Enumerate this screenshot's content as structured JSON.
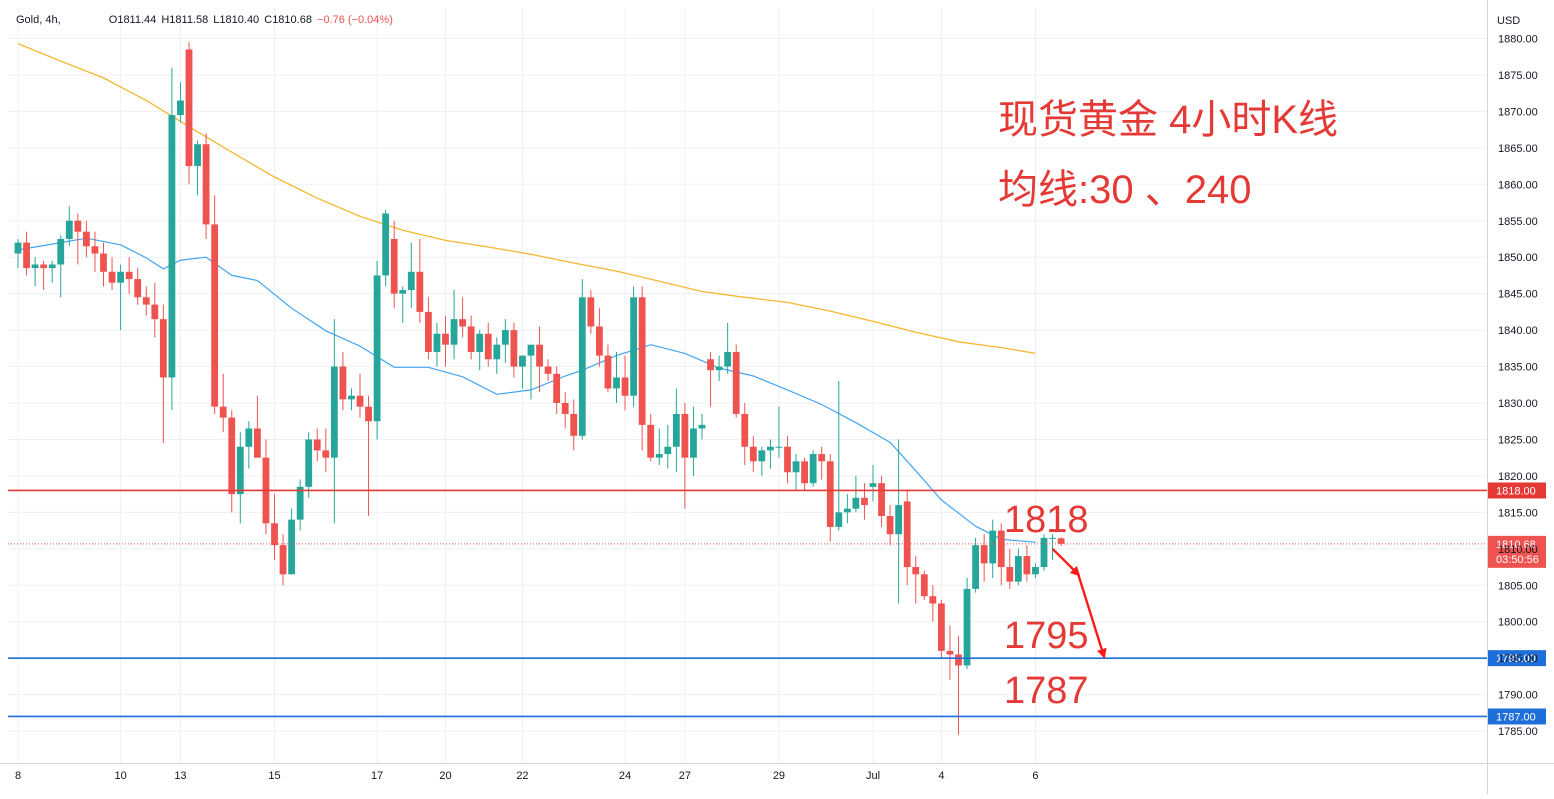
{
  "header": {
    "symbol": "Gold, 4h,",
    "open": "O1811.44",
    "high": "H1811.58",
    "low": "L1810.40",
    "close": "C1810.68",
    "change": "−0.76 (−0.04%)"
  },
  "colors": {
    "up": "#26a69a",
    "down": "#ef5350",
    "ma30": "#42a5f5",
    "ma240": "#f7b731",
    "resistance": "#e53935",
    "support": "#1e6fd9",
    "annotation": "#e53935",
    "grid": "#eef0f4"
  },
  "annotation": {
    "title": "现货黄金 4小时K线",
    "subtitle": "均线:30 、240",
    "label_1818": "1818",
    "label_1795": "1795",
    "label_1787": "1787"
  },
  "chart_data": {
    "type": "candlestick",
    "currency": "USD",
    "ylim": [
      1783,
      1883
    ],
    "y_ticks": [
      1785,
      1790,
      1795,
      1800,
      1805,
      1810,
      1815,
      1820,
      1825,
      1830,
      1835,
      1840,
      1845,
      1850,
      1855,
      1860,
      1865,
      1870,
      1875,
      1880
    ],
    "x_tick_labels": [
      "8",
      "10",
      "13",
      "15",
      "17",
      "20",
      "22",
      "24",
      "27",
      "29",
      "Jul",
      "4",
      "6"
    ],
    "x_tick_index": [
      0,
      12,
      19,
      30,
      42,
      50,
      59,
      71,
      78,
      89,
      100,
      108,
      119
    ],
    "candles": [
      [
        1850.5,
        1852.5,
        1848.5,
        1852.0
      ],
      [
        1852.0,
        1853.5,
        1847.5,
        1848.5
      ],
      [
        1848.5,
        1850.0,
        1846.0,
        1849.0
      ],
      [
        1849.0,
        1849.5,
        1845.5,
        1848.5
      ],
      [
        1848.5,
        1849.5,
        1846.5,
        1849.0
      ],
      [
        1849.0,
        1853.0,
        1844.5,
        1852.5
      ],
      [
        1852.5,
        1857.0,
        1851.5,
        1855.0
      ],
      [
        1855.0,
        1856.0,
        1849.0,
        1853.5
      ],
      [
        1853.5,
        1855.0,
        1850.0,
        1851.5
      ],
      [
        1851.5,
        1853.5,
        1848.0,
        1850.5
      ],
      [
        1850.5,
        1852.0,
        1846.0,
        1848.0
      ],
      [
        1848.0,
        1850.0,
        1845.5,
        1846.5
      ],
      [
        1846.5,
        1849.0,
        1840.0,
        1848.0
      ],
      [
        1848.0,
        1850.0,
        1845.0,
        1847.0
      ],
      [
        1847.0,
        1848.5,
        1843.5,
        1844.5
      ],
      [
        1844.5,
        1846.0,
        1842.0,
        1843.5
      ],
      [
        1843.5,
        1846.5,
        1839.0,
        1841.5
      ],
      [
        1841.5,
        1843.5,
        1824.5,
        1833.5
      ],
      [
        1833.5,
        1876.0,
        1829.0,
        1869.5
      ],
      [
        1869.5,
        1874.0,
        1868.5,
        1871.5
      ],
      [
        1878.5,
        1879.5,
        1860.0,
        1862.5
      ],
      [
        1862.5,
        1866.0,
        1858.5,
        1865.5
      ],
      [
        1865.5,
        1867.0,
        1852.5,
        1854.5
      ],
      [
        1854.5,
        1858.5,
        1828.5,
        1829.5
      ],
      [
        1829.5,
        1834.0,
        1826.0,
        1828.0
      ],
      [
        1828.0,
        1829.0,
        1815.0,
        1817.5
      ],
      [
        1817.5,
        1826.0,
        1813.5,
        1824.0
      ],
      [
        1824.0,
        1827.5,
        1821.0,
        1826.5
      ],
      [
        1826.5,
        1831.0,
        1822.5,
        1822.5
      ],
      [
        1822.5,
        1825.0,
        1812.0,
        1813.5
      ],
      [
        1813.5,
        1817.5,
        1808.5,
        1810.5
      ],
      [
        1810.5,
        1812.0,
        1805.0,
        1806.5
      ],
      [
        1806.5,
        1815.5,
        1806.5,
        1814.0
      ],
      [
        1814.0,
        1819.5,
        1812.5,
        1818.5
      ],
      [
        1818.5,
        1826.0,
        1817.0,
        1825.0
      ],
      [
        1825.0,
        1826.5,
        1822.0,
        1823.5
      ],
      [
        1823.5,
        1826.5,
        1820.5,
        1822.5
      ],
      [
        1822.5,
        1841.5,
        1813.5,
        1835.0
      ],
      [
        1835.0,
        1837.0,
        1829.0,
        1830.5
      ],
      [
        1830.5,
        1832.0,
        1829.0,
        1831.0
      ],
      [
        1831.0,
        1834.0,
        1828.0,
        1829.5
      ],
      [
        1829.5,
        1831.0,
        1814.5,
        1827.5
      ],
      [
        1827.5,
        1849.5,
        1825.0,
        1847.5
      ],
      [
        1847.5,
        1856.5,
        1846.0,
        1856.0
      ],
      [
        1852.5,
        1855.0,
        1843.0,
        1845.0
      ],
      [
        1845.0,
        1846.0,
        1841.0,
        1845.5
      ],
      [
        1845.5,
        1852.0,
        1843.0,
        1848.0
      ],
      [
        1848.0,
        1852.5,
        1841.0,
        1842.5
      ],
      [
        1842.5,
        1844.5,
        1836.0,
        1837.0
      ],
      [
        1837.0,
        1841.0,
        1835.0,
        1839.5
      ],
      [
        1839.5,
        1842.0,
        1835.0,
        1838.0
      ],
      [
        1838.0,
        1845.5,
        1836.0,
        1841.5
      ],
      [
        1841.5,
        1844.5,
        1839.0,
        1840.5
      ],
      [
        1840.5,
        1842.0,
        1836.0,
        1837.0
      ],
      [
        1837.0,
        1840.0,
        1834.5,
        1839.5
      ],
      [
        1839.5,
        1841.0,
        1835.0,
        1836.0
      ],
      [
        1836.0,
        1839.0,
        1834.0,
        1838.0
      ],
      [
        1838.0,
        1841.5,
        1835.5,
        1840.0
      ],
      [
        1840.0,
        1841.0,
        1833.5,
        1835.0
      ],
      [
        1835.0,
        1836.0,
        1832.0,
        1836.5
      ],
      [
        1836.5,
        1837.5,
        1830.5,
        1838.0
      ],
      [
        1838.0,
        1840.5,
        1831.5,
        1835.0
      ],
      [
        1835.0,
        1836.0,
        1833.0,
        1834.0
      ],
      [
        1834.0,
        1835.0,
        1828.5,
        1830.0
      ],
      [
        1830.0,
        1831.5,
        1826.5,
        1828.5
      ],
      [
        1828.5,
        1830.5,
        1823.5,
        1825.5
      ],
      [
        1825.5,
        1847.0,
        1825.0,
        1844.5
      ],
      [
        1844.5,
        1845.5,
        1839.5,
        1840.5
      ],
      [
        1840.5,
        1843.0,
        1835.0,
        1836.5
      ],
      [
        1836.5,
        1838.0,
        1831.5,
        1832.0
      ],
      [
        1832.0,
        1837.0,
        1830.0,
        1833.5
      ],
      [
        1833.5,
        1836.5,
        1829.0,
        1831.0
      ],
      [
        1831.0,
        1846.0,
        1829.5,
        1844.5
      ],
      [
        1844.5,
        1846.0,
        1823.5,
        1827.0
      ],
      [
        1827.0,
        1828.5,
        1822.0,
        1822.5
      ],
      [
        1822.5,
        1826.5,
        1821.5,
        1823.0
      ],
      [
        1823.0,
        1827.0,
        1821.0,
        1824.0
      ],
      [
        1824.0,
        1832.0,
        1820.5,
        1828.5
      ],
      [
        1828.5,
        1830.0,
        1815.5,
        1822.5
      ],
      [
        1822.5,
        1829.5,
        1820.0,
        1826.5
      ],
      [
        1826.5,
        1828.5,
        1825.0,
        1827.0
      ],
      [
        1836.0,
        1837.0,
        1829.5,
        1834.5
      ],
      [
        1834.5,
        1836.5,
        1833.0,
        1835.0
      ],
      [
        1835.0,
        1841.0,
        1834.0,
        1837.0
      ],
      [
        1837.0,
        1838.0,
        1828.0,
        1828.5
      ],
      [
        1828.5,
        1830.0,
        1821.5,
        1824.0
      ],
      [
        1824.0,
        1825.5,
        1820.5,
        1822.0
      ],
      [
        1822.0,
        1824.0,
        1820.0,
        1823.5
      ],
      [
        1823.5,
        1825.0,
        1821.0,
        1824.0
      ],
      [
        1824.0,
        1829.5,
        1822.5,
        1824.0
      ],
      [
        1824.0,
        1825.5,
        1819.0,
        1820.5
      ],
      [
        1820.5,
        1823.0,
        1818.0,
        1822.0
      ],
      [
        1822.0,
        1822.5,
        1818.0,
        1819.0
      ],
      [
        1819.0,
        1823.5,
        1818.5,
        1823.0
      ],
      [
        1823.0,
        1824.0,
        1819.5,
        1822.0
      ],
      [
        1822.0,
        1823.0,
        1811.0,
        1813.0
      ],
      [
        1813.0,
        1833.0,
        1812.5,
        1815.0
      ],
      [
        1815.0,
        1817.5,
        1813.5,
        1815.5
      ],
      [
        1815.5,
        1820.0,
        1815.0,
        1817.0
      ],
      [
        1817.0,
        1819.0,
        1814.0,
        1816.0
      ],
      [
        1818.5,
        1821.5,
        1816.5,
        1819.0
      ],
      [
        1819.0,
        1820.0,
        1813.0,
        1814.5
      ],
      [
        1814.5,
        1816.0,
        1810.5,
        1812.0
      ],
      [
        1812.0,
        1825.0,
        1802.5,
        1816.0
      ],
      [
        1816.5,
        1818.0,
        1805.0,
        1807.5
      ],
      [
        1807.5,
        1809.0,
        1802.5,
        1806.5
      ],
      [
        1806.5,
        1807.0,
        1803.0,
        1803.5
      ],
      [
        1803.5,
        1805.0,
        1800.0,
        1802.5
      ],
      [
        1802.5,
        1803.0,
        1795.0,
        1796.0
      ],
      [
        1796.0,
        1799.5,
        1792.0,
        1795.5
      ],
      [
        1795.5,
        1798.0,
        1784.5,
        1794.0
      ],
      [
        1794.0,
        1806.0,
        1793.5,
        1804.5
      ],
      [
        1804.5,
        1811.5,
        1804.0,
        1810.5
      ],
      [
        1810.5,
        1812.0,
        1805.5,
        1808.0
      ],
      [
        1808.0,
        1814.0,
        1806.0,
        1812.5
      ],
      [
        1812.5,
        1813.5,
        1805.0,
        1807.5
      ],
      [
        1807.5,
        1810.0,
        1804.5,
        1805.5
      ],
      [
        1805.5,
        1810.0,
        1805.0,
        1809.0
      ],
      [
        1809.0,
        1810.5,
        1805.5,
        1806.5
      ],
      [
        1806.5,
        1808.0,
        1806.0,
        1807.5
      ],
      [
        1807.5,
        1812.0,
        1807.0,
        1811.5
      ],
      [
        1811.5,
        1812.0,
        1808.5,
        1811.5
      ],
      [
        1811.44,
        1811.58,
        1810.4,
        1810.68
      ]
    ],
    "ma30": [
      [
        0,
        1851.0
      ],
      [
        4,
        1851.8
      ],
      [
        8,
        1852.6
      ],
      [
        12,
        1851.7
      ],
      [
        15,
        1849.9
      ],
      [
        17,
        1848.4
      ],
      [
        19,
        1849.6
      ],
      [
        22,
        1850.0
      ],
      [
        25,
        1847.5
      ],
      [
        28,
        1846.8
      ],
      [
        32,
        1843.0
      ],
      [
        36,
        1839.9
      ],
      [
        40,
        1837.8
      ],
      [
        44,
        1834.9
      ],
      [
        48,
        1834.9
      ],
      [
        52,
        1833.6
      ],
      [
        56,
        1831.2
      ],
      [
        60,
        1831.8
      ],
      [
        64,
        1833.7
      ],
      [
        66,
        1834.5
      ],
      [
        70,
        1836.5
      ],
      [
        74,
        1838.0
      ],
      [
        78,
        1836.8
      ],
      [
        82,
        1834.8
      ],
      [
        86,
        1833.7
      ],
      [
        90,
        1831.8
      ],
      [
        94,
        1829.8
      ],
      [
        98,
        1827.3
      ],
      [
        102,
        1824.6
      ],
      [
        105,
        1820.7
      ],
      [
        108,
        1816.7
      ],
      [
        112,
        1813.1
      ],
      [
        115,
        1811.3
      ],
      [
        119,
        1810.9
      ]
    ],
    "ma240": [
      [
        0,
        1879.3
      ],
      [
        5,
        1876.9
      ],
      [
        10,
        1874.6
      ],
      [
        15,
        1871.5
      ],
      [
        20,
        1867.9
      ],
      [
        25,
        1864.4
      ],
      [
        30,
        1861.0
      ],
      [
        35,
        1858.1
      ],
      [
        40,
        1855.6
      ],
      [
        45,
        1853.7
      ],
      [
        50,
        1852.3
      ],
      [
        55,
        1851.4
      ],
      [
        60,
        1850.4
      ],
      [
        65,
        1849.2
      ],
      [
        70,
        1848.1
      ],
      [
        75,
        1846.7
      ],
      [
        80,
        1845.3
      ],
      [
        85,
        1844.5
      ],
      [
        90,
        1843.8
      ],
      [
        95,
        1842.6
      ],
      [
        100,
        1841.2
      ],
      [
        105,
        1839.7
      ],
      [
        110,
        1838.4
      ],
      [
        115,
        1837.6
      ],
      [
        119,
        1836.8
      ]
    ],
    "levels": [
      {
        "price": 1818.0,
        "label": "1818.00",
        "kind": "resistance"
      },
      {
        "price": 1795.0,
        "label": "1795.00",
        "kind": "support"
      },
      {
        "price": 1787.0,
        "label": "1787.00",
        "kind": "support"
      }
    ],
    "last_price": {
      "price": 1810.68,
      "label": "1810.68",
      "countdown": "03:50:56"
    },
    "projection": [
      [
        121,
        1810.0
      ],
      [
        124,
        1806.5
      ],
      [
        127,
        1795.3
      ]
    ]
  }
}
